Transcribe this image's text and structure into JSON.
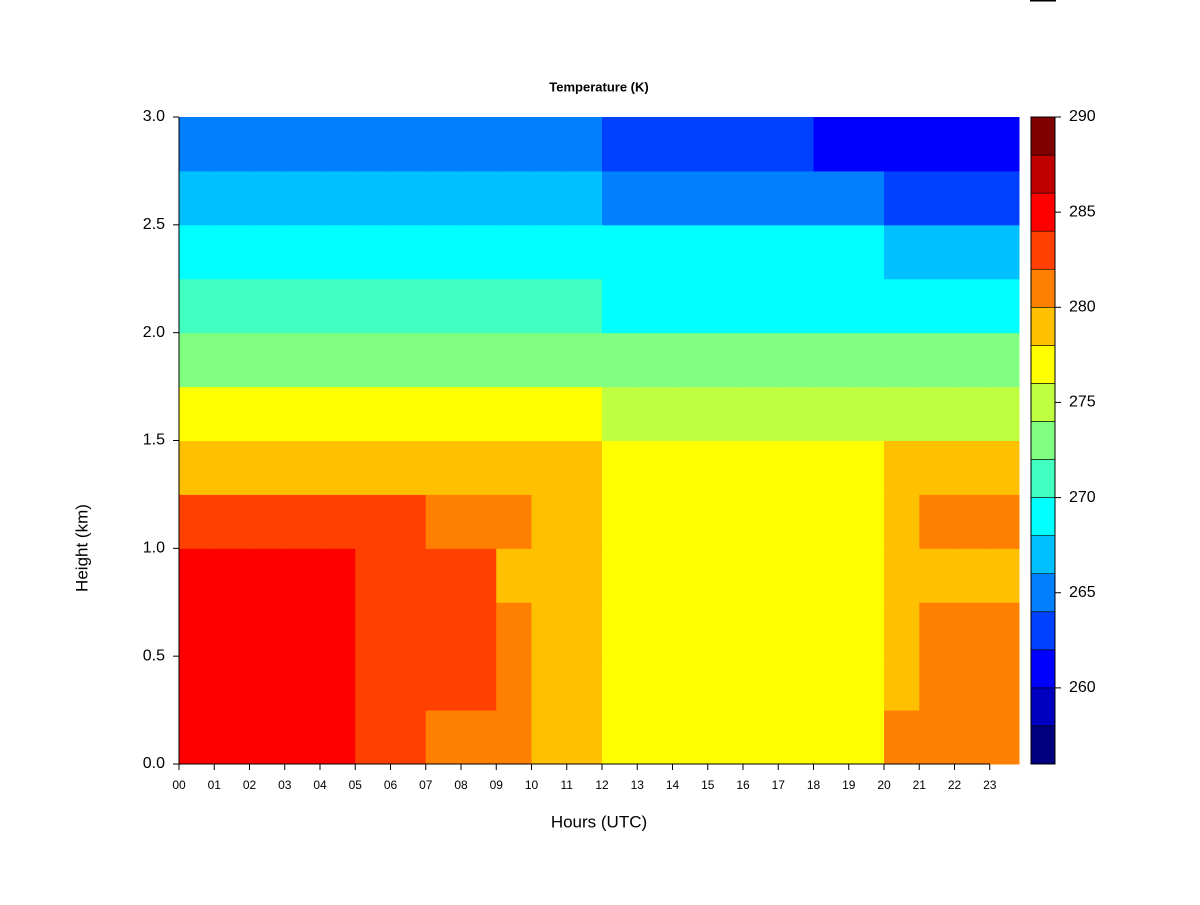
{
  "chart_data": {
    "type": "heatmap",
    "title": "Temperature (K)",
    "x_label": "Hours (UTC)",
    "y_label": "Height (km)",
    "x": [
      0,
      1,
      2,
      3,
      4,
      5,
      6,
      7,
      8,
      9,
      10,
      11,
      12,
      13,
      14,
      15,
      16,
      17,
      18,
      19,
      20,
      21,
      22,
      23
    ],
    "y": [
      0,
      0.25,
      0.5,
      0.75,
      1,
      1.25,
      1.5,
      1.75,
      2,
      2.25,
      2.5,
      2.75
    ],
    "z": [
      [
        284,
        284,
        284,
        284,
        284,
        283,
        283,
        281,
        281,
        281,
        279,
        279,
        277,
        277,
        277,
        277,
        276,
        276,
        276,
        277,
        280,
        280,
        280,
        280
      ],
      [
        284,
        284,
        284,
        284,
        284,
        283,
        283,
        282,
        282,
        281,
        279,
        279,
        277,
        277,
        277,
        277,
        276,
        276,
        276,
        277,
        279,
        280,
        280,
        280
      ],
      [
        284,
        284,
        284,
        284,
        284,
        283,
        283,
        282,
        282,
        281,
        279,
        279,
        277,
        277,
        277,
        277,
        276,
        276,
        276,
        277,
        279,
        280,
        280,
        280
      ],
      [
        284,
        284,
        284,
        284,
        284,
        283,
        283,
        282,
        282,
        279,
        279,
        279,
        277,
        277,
        277,
        277,
        277,
        277,
        277,
        277,
        279,
        279,
        279,
        279
      ],
      [
        282,
        282,
        282,
        282,
        282,
        282,
        282,
        281,
        281,
        281,
        279,
        279,
        277,
        277,
        277,
        277,
        277,
        277,
        277,
        277,
        278,
        280,
        280,
        280
      ],
      [
        279,
        279,
        279,
        279,
        279,
        279,
        279,
        279,
        279,
        279,
        279,
        279,
        276,
        276,
        276,
        276,
        276,
        276,
        276,
        276,
        278,
        278,
        278,
        278
      ],
      [
        276,
        276,
        276,
        276,
        276,
        276,
        276,
        276,
        276,
        276,
        276,
        276,
        274,
        274,
        274,
        274,
        274,
        274,
        274,
        274,
        275,
        275,
        275,
        275
      ],
      [
        273,
        273,
        273,
        273,
        273,
        273,
        273,
        273,
        273,
        273,
        273,
        273,
        272,
        272,
        272,
        272,
        272,
        272,
        272,
        272,
        272,
        272,
        272,
        272
      ],
      [
        271,
        271,
        271,
        271,
        271,
        271,
        271,
        271,
        271,
        271,
        271,
        271,
        269,
        269,
        269,
        269,
        269,
        269,
        269,
        269,
        268,
        268,
        268,
        268
      ],
      [
        269,
        269,
        269,
        269,
        269,
        269,
        269,
        269,
        269,
        269,
        269,
        269,
        268,
        268,
        268,
        268,
        268,
        268,
        268,
        268,
        266,
        266,
        266,
        266
      ],
      [
        266,
        266,
        266,
        266,
        266,
        266,
        266,
        266,
        266,
        266,
        266,
        266,
        265,
        265,
        265,
        265,
        265,
        265,
        265,
        265,
        263,
        263,
        263,
        263
      ],
      [
        264,
        264,
        264,
        264,
        264,
        264,
        264,
        264,
        264,
        264,
        264,
        264,
        263,
        263,
        263,
        263,
        263,
        263,
        261,
        261,
        261,
        261,
        261,
        261
      ]
    ],
    "xlim": [
      0,
      23.83
    ],
    "ylim": [
      0,
      3
    ],
    "xticks": [
      {
        "value": 0,
        "label": "00"
      },
      {
        "value": 1,
        "label": "01"
      },
      {
        "value": 2,
        "label": "02"
      },
      {
        "value": 3,
        "label": "03"
      },
      {
        "value": 4,
        "label": "04"
      },
      {
        "value": 5,
        "label": "05"
      },
      {
        "value": 6,
        "label": "06"
      },
      {
        "value": 7,
        "label": "07"
      },
      {
        "value": 8,
        "label": "08"
      },
      {
        "value": 9,
        "label": "09"
      },
      10,
      11,
      12,
      13,
      14,
      15,
      16,
      17,
      18,
      19,
      20,
      21,
      22,
      23
    ],
    "yticks": [
      {
        "value": 0,
        "label": "0.0"
      },
      0.5,
      {
        "value": 1,
        "label": "1.0"
      },
      1.5,
      {
        "value": 2,
        "label": "2.0"
      },
      2.5,
      {
        "value": 3,
        "label": "3.0"
      }
    ],
    "colorbar": {
      "breaks": [
        256,
        258,
        260,
        262,
        264,
        266,
        268,
        270,
        272,
        274,
        276,
        278,
        280,
        282,
        284,
        286,
        288,
        290
      ],
      "colors": [
        "#00007f",
        "#0000c0",
        "#0000ff",
        "#0040ff",
        "#0080ff",
        "#00c0ff",
        "#00ffff",
        "#40ffc0",
        "#80ff80",
        "#c0ff40",
        "#ffff00",
        "#ffc000",
        "#ff8000",
        "#ff4000",
        "#ff0000",
        "#c00000",
        "#7f0000"
      ],
      "ticks": [
        260,
        265,
        270,
        275,
        280,
        285,
        290
      ]
    }
  }
}
